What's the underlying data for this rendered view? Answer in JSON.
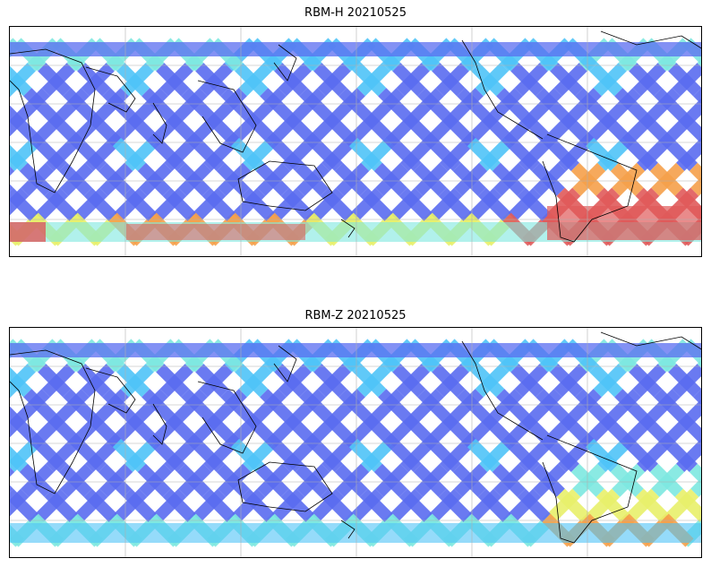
{
  "panels": [
    {
      "title": "RBM-H 20210525",
      "palette_high": "#e8575a",
      "southern_warm": true
    },
    {
      "title": "RBM-Z 20210525",
      "palette_high": "#f5a04a",
      "southern_warm": false
    }
  ],
  "colors": {
    "swath_low": "#5a6cf0",
    "swath_mid": "#4fc3f7",
    "swath_mid2": "#7de8e0",
    "swath_yellow": "#e8f06a",
    "swath_orange": "#f5a04a",
    "swath_red": "#e05a5a",
    "coast": "#000000",
    "grid": "#b0b0b0"
  }
}
